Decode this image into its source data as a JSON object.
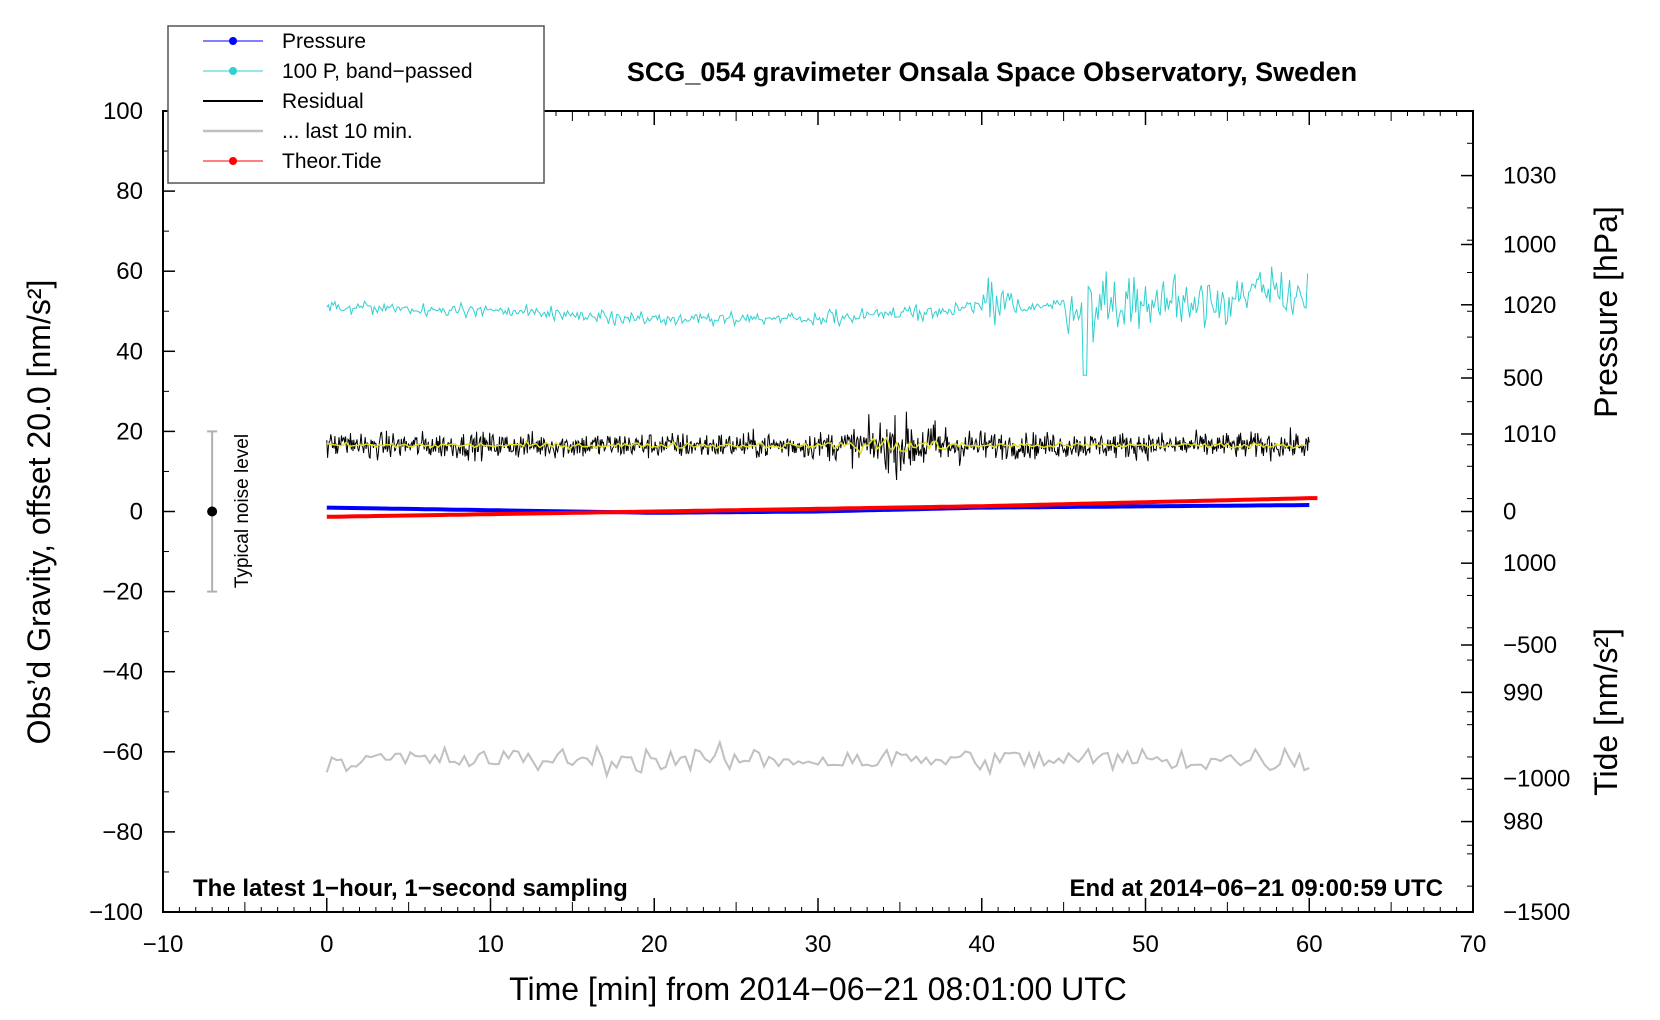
{
  "chart_data": {
    "type": "line",
    "title": "SCG_054 gravimeter Onsala Space Observatory, Sweden",
    "xlabel": "Time [min] from 2014−06−21 08:01:00 UTC",
    "ylabel": "Obs’d Gravity, offset 20.0 [nm/s²]",
    "y2label_pressure": "Pressure [hPa]",
    "y2label_tide": "Tide [nm/s²]",
    "xlim": [
      -10,
      70
    ],
    "ylim": [
      -100,
      100
    ],
    "pressure_axis_range": [
      973,
      1035
    ],
    "tide_axis_range": [
      -1500,
      1500
    ],
    "x_ticks": [
      "−10",
      "0",
      "10",
      "20",
      "30",
      "40",
      "50",
      "60",
      "70"
    ],
    "x_tick_values": [
      -10,
      0,
      10,
      20,
      30,
      40,
      50,
      60,
      70
    ],
    "y_ticks": [
      "100",
      "80",
      "60",
      "40",
      "20",
      "0",
      "−20",
      "−40",
      "−60",
      "−80",
      "−100"
    ],
    "y_tick_values": [
      100,
      80,
      60,
      40,
      20,
      0,
      -20,
      -40,
      -60,
      -80,
      -100
    ],
    "pressure_ticks": [
      "1030",
      "1020",
      "1010",
      "1000",
      "990",
      "980"
    ],
    "pressure_tick_values": [
      1030,
      1020,
      1010,
      1000,
      990,
      980
    ],
    "tide_ticks": [
      "1000",
      "500",
      "0",
      "−500",
      "−1000",
      "−1500"
    ],
    "tide_tick_values": [
      1000,
      500,
      0,
      -500,
      -1000,
      -1500
    ],
    "legend": [
      {
        "label": "Pressure",
        "color": "#0000ff",
        "marker": "dot"
      },
      {
        "label": "100 P, band−passed",
        "color": "#30d0d0",
        "marker": "dot"
      },
      {
        "label": "Residual",
        "color": "#000000",
        "marker": "none"
      },
      {
        "label": "... last 10 min.",
        "color": "#c0c0c0",
        "marker": "none"
      },
      {
        "label": "Theor.Tide",
        "color": "#ff0000",
        "marker": "dot"
      }
    ],
    "series": [
      {
        "name": "Pressure",
        "axis": "pressure",
        "x": [
          0,
          10,
          20,
          30,
          40,
          50,
          60
        ],
        "values": [
          1004.3,
          1004.1,
          1003.9,
          1004.0,
          1004.3,
          1004.4,
          1004.5
        ]
      },
      {
        "name": "100 P, band-passed",
        "axis": "gravity",
        "x": [
          0,
          10,
          20,
          30,
          40,
          50,
          60
        ],
        "values": [
          51,
          50,
          48,
          48,
          51,
          52,
          55
        ]
      },
      {
        "name": "Residual",
        "axis": "gravity",
        "x": [
          0,
          10,
          20,
          30,
          40,
          50,
          60
        ],
        "values": [
          16.5,
          16.5,
          16.5,
          16.5,
          16.5,
          16.5,
          16.5
        ]
      },
      {
        "name": "... last 10 min.",
        "axis": "gravity",
        "x": [
          0,
          10,
          20,
          30,
          40,
          50,
          60
        ],
        "values": [
          -62,
          -62,
          -62,
          -62,
          -62,
          -62,
          -62
        ]
      },
      {
        "name": "Theor.Tide",
        "axis": "tide",
        "x": [
          0,
          10,
          20,
          30,
          40,
          50,
          60
        ],
        "values": [
          -20,
          -10,
          0,
          10,
          20,
          35,
          50
        ]
      }
    ],
    "noise_bar": {
      "x": -7,
      "center": 0,
      "low": -20,
      "high": 20,
      "label": "Typical noise level"
    },
    "footer_left": "The latest 1−hour, 1−second sampling",
    "footer_right": "End at 2014−06−21 09:00:59 UTC"
  }
}
